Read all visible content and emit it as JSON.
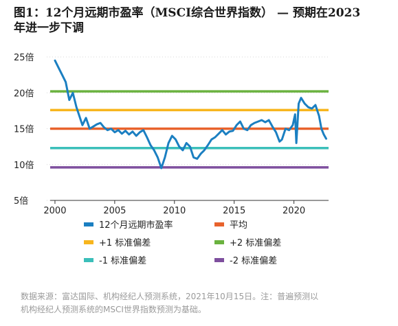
{
  "title_lines": [
    "图1：12个月远期市盈率（MSCI综合世界指数） — 预期在2023",
    "年进一步下调"
  ],
  "footnote_lines": [
    "数据来源：富达国际、机构经纪人预测系统，2021年10月15日。注：普遍预测以",
    "机构经纪人预测系统的MSCI世界指数预测为基础。"
  ],
  "chart_data": {
    "type": "line",
    "title": "",
    "xlabel": "",
    "ylabel": "",
    "xlim": [
      1999.6,
      2022.9
    ],
    "ylim": [
      5,
      25
    ],
    "x_ticks": [
      2000,
      2005,
      2010,
      2015,
      2020
    ],
    "y_ticks": [
      {
        "value": 25,
        "label": "25倍"
      },
      {
        "value": 20,
        "label": "20倍"
      },
      {
        "value": 15,
        "label": "15倍"
      },
      {
        "value": 10,
        "label": "10倍"
      },
      {
        "value": 5,
        "label": "5倍"
      }
    ],
    "legend_position": "bottom",
    "series": [
      {
        "name": "12个月远期市盈率",
        "color": "#1b7fc1",
        "x": [
          2000.0,
          2000.3,
          2000.6,
          2000.9,
          2001.2,
          2001.5,
          2001.8,
          2002.0,
          2002.3,
          2002.6,
          2002.9,
          2003.2,
          2003.5,
          2003.8,
          2004.1,
          2004.4,
          2004.7,
          2005.0,
          2005.3,
          2005.6,
          2005.9,
          2006.2,
          2006.5,
          2006.8,
          2007.1,
          2007.4,
          2007.7,
          2008.0,
          2008.3,
          2008.6,
          2008.9,
          2009.2,
          2009.5,
          2009.8,
          2010.1,
          2010.4,
          2010.7,
          2011.0,
          2011.3,
          2011.6,
          2011.9,
          2012.2,
          2012.5,
          2012.8,
          2013.1,
          2013.4,
          2013.7,
          2014.0,
          2014.3,
          2014.6,
          2014.9,
          2015.2,
          2015.5,
          2015.8,
          2016.1,
          2016.4,
          2016.7,
          2017.0,
          2017.3,
          2017.6,
          2017.9,
          2018.2,
          2018.5,
          2018.8,
          2019.0,
          2019.3,
          2019.6,
          2019.9,
          2020.1,
          2020.2,
          2020.4,
          2020.6,
          2020.9,
          2021.2,
          2021.5,
          2021.8,
          2022.1,
          2022.3,
          2022.5,
          2022.7
        ],
        "values": [
          24.5,
          23.5,
          22.5,
          21.5,
          19.0,
          20.0,
          18.0,
          17.0,
          15.5,
          16.5,
          15.0,
          15.3,
          15.6,
          15.8,
          15.2,
          14.8,
          15.0,
          14.5,
          14.8,
          14.3,
          14.7,
          14.2,
          14.6,
          14.0,
          14.5,
          14.8,
          13.8,
          12.7,
          12.0,
          11.0,
          9.5,
          11.0,
          13.0,
          14.0,
          13.5,
          12.5,
          12.0,
          13.0,
          12.5,
          11.0,
          10.8,
          11.5,
          12.0,
          12.7,
          13.5,
          13.8,
          14.3,
          14.8,
          14.2,
          14.6,
          14.7,
          15.5,
          16.0,
          15.0,
          14.8,
          15.5,
          15.8,
          16.0,
          16.2,
          15.9,
          16.2,
          15.3,
          14.5,
          13.2,
          13.5,
          15.0,
          14.8,
          15.5,
          17.0,
          13.0,
          18.5,
          19.3,
          18.5,
          18.0,
          17.8,
          18.3,
          16.8,
          15.0,
          14.2,
          13.6
        ]
      },
      {
        "name": "平均",
        "color": "#e8622c",
        "values": [
          15.0
        ]
      },
      {
        "name": "+1 标准偏差",
        "color": "#f7b51d",
        "values": [
          17.6
        ]
      },
      {
        "name": "+2 标准偏差",
        "color": "#6ab23f",
        "values": [
          20.2
        ]
      },
      {
        "name": "-1 标准偏差",
        "color": "#3bbfba",
        "values": [
          12.3
        ]
      },
      {
        "name": "-2 标准偏差",
        "color": "#7e4f9e",
        "values": [
          9.6
        ]
      }
    ]
  }
}
